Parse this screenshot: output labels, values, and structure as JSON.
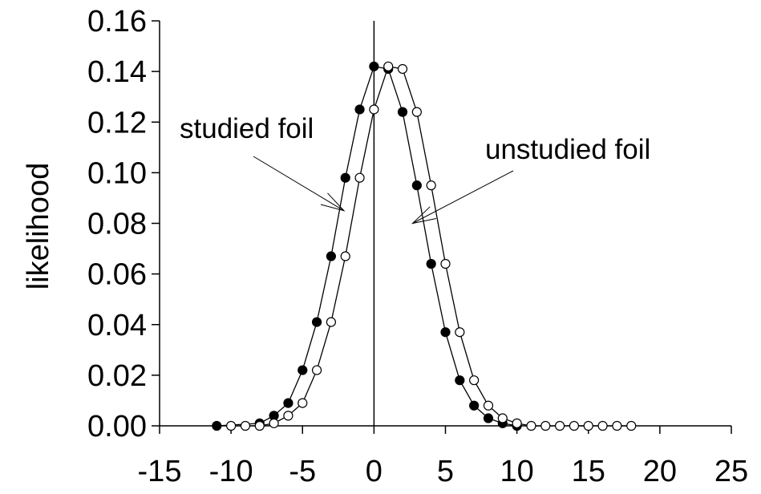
{
  "chart_data": {
    "type": "scatter",
    "title": "",
    "xlabel": "",
    "ylabel": "likelihood",
    "xlim": [
      -15,
      25
    ],
    "ylim": [
      0,
      0.16
    ],
    "xticks": [
      -15,
      -10,
      -5,
      0,
      5,
      10,
      15,
      20,
      25
    ],
    "yticks": [
      0.0,
      0.02,
      0.04,
      0.06,
      0.08,
      0.1,
      0.12,
      0.14,
      0.16
    ],
    "grid": false,
    "legend": "none",
    "series": [
      {
        "marker": "filled-circle",
        "color": "#000000",
        "points": [
          [
            -11,
            0.0
          ],
          [
            -8,
            0.001
          ],
          [
            -7,
            0.004
          ],
          [
            -6,
            0.009
          ],
          [
            -5,
            0.022
          ],
          [
            -4,
            0.041
          ],
          [
            -3,
            0.067
          ],
          [
            -2,
            0.098
          ],
          [
            -1,
            0.125
          ],
          [
            0,
            0.142
          ],
          [
            1,
            0.141
          ],
          [
            2,
            0.124
          ],
          [
            3,
            0.095
          ],
          [
            4,
            0.064
          ],
          [
            5,
            0.037
          ],
          [
            6,
            0.018
          ],
          [
            7,
            0.008
          ],
          [
            8,
            0.003
          ],
          [
            9,
            0.001
          ],
          [
            10,
            0.0
          ]
        ]
      },
      {
        "marker": "open-circle",
        "color": "#000000",
        "points": [
          [
            -10,
            0.0
          ],
          [
            -9,
            0.0
          ],
          [
            -8,
            0.0
          ],
          [
            -7,
            0.001
          ],
          [
            -6,
            0.004
          ],
          [
            -5,
            0.009
          ],
          [
            -4,
            0.022
          ],
          [
            -3,
            0.041
          ],
          [
            -2,
            0.067
          ],
          [
            -1,
            0.098
          ],
          [
            0,
            0.125
          ],
          [
            1,
            0.142
          ],
          [
            2,
            0.141
          ],
          [
            3,
            0.124
          ],
          [
            4,
            0.095
          ],
          [
            5,
            0.064
          ],
          [
            6,
            0.037
          ],
          [
            7,
            0.018
          ],
          [
            8,
            0.008
          ],
          [
            9,
            0.003
          ],
          [
            10,
            0.001
          ],
          [
            11,
            0.0
          ],
          [
            12,
            0.0
          ],
          [
            13,
            0.0
          ],
          [
            14,
            0.0
          ],
          [
            15,
            0.0
          ],
          [
            16,
            0.0
          ],
          [
            17,
            0.0
          ],
          [
            18,
            0.0
          ]
        ]
      }
    ],
    "annotations": [
      {
        "text": "studied foil",
        "target": [
          -2.1,
          0.085
        ]
      },
      {
        "text": "unstudied foil",
        "target": [
          2.7,
          0.08
        ]
      }
    ]
  }
}
